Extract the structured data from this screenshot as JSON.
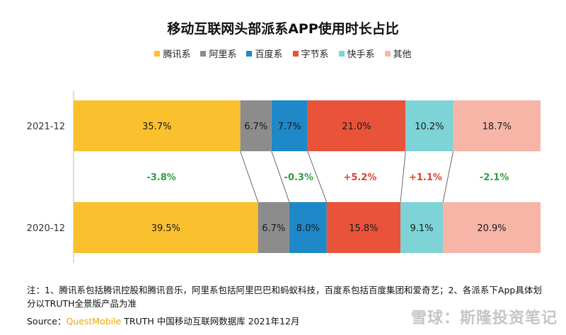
{
  "chart_data": {
    "type": "bar",
    "orientation": "horizontal",
    "stacked": "percent",
    "title": "移动互联网头部派系APP使用时长占比",
    "categories": [
      "2021-12",
      "2020-12"
    ],
    "series": [
      {
        "name": "腾讯系",
        "color": "#FBC02D",
        "values": [
          35.7,
          39.5
        ],
        "labels": [
          "35.7%",
          "39.5%"
        ]
      },
      {
        "name": "阿里系",
        "color": "#8C8C8C",
        "values": [
          6.7,
          6.7
        ],
        "labels": [
          "6.7%",
          "6.7%"
        ]
      },
      {
        "name": "百度系",
        "color": "#1E88C8",
        "values": [
          7.7,
          8.0
        ],
        "labels": [
          "7.7%",
          "8.0%"
        ]
      },
      {
        "name": "字节系",
        "color": "#E8533A",
        "values": [
          21.0,
          15.8
        ],
        "labels": [
          "21.0%",
          "15.8%"
        ]
      },
      {
        "name": "快手系",
        "color": "#7ED3D6",
        "values": [
          10.2,
          9.1
        ],
        "labels": [
          "10.2%",
          "9.1%"
        ]
      },
      {
        "name": "其他",
        "color": "#F7B5A8",
        "values": [
          18.7,
          20.9
        ],
        "labels": [
          "18.7%",
          "20.9%"
        ]
      }
    ],
    "changes": [
      {
        "label": "-3.8%",
        "color": "#2E9E44"
      },
      {
        "label": "",
        "color": "#2E9E44"
      },
      {
        "label": "-0.3%",
        "color": "#2E9E44"
      },
      {
        "label": "+5.2%",
        "color": "#E0402A"
      },
      {
        "label": "+1.1%",
        "color": "#E0402A"
      },
      {
        "label": "-2.1%",
        "color": "#2E9E44"
      }
    ],
    "legend": "top"
  },
  "note": "注：1、腾讯系包括腾讯控股和腾讯音乐，阿里系包括阿里巴巴和蚂蚁科技，百度系包括百度集团和爱奇艺；2、各派系下App具体划分以TRUTH全景版产品为准",
  "source": {
    "prefix": "Source：",
    "brand": "QuestMobile",
    "rest": " TRUTH 中国移动互联网数据库 2021年12月"
  },
  "watermark": "雪球：斯隆投资笔记"
}
